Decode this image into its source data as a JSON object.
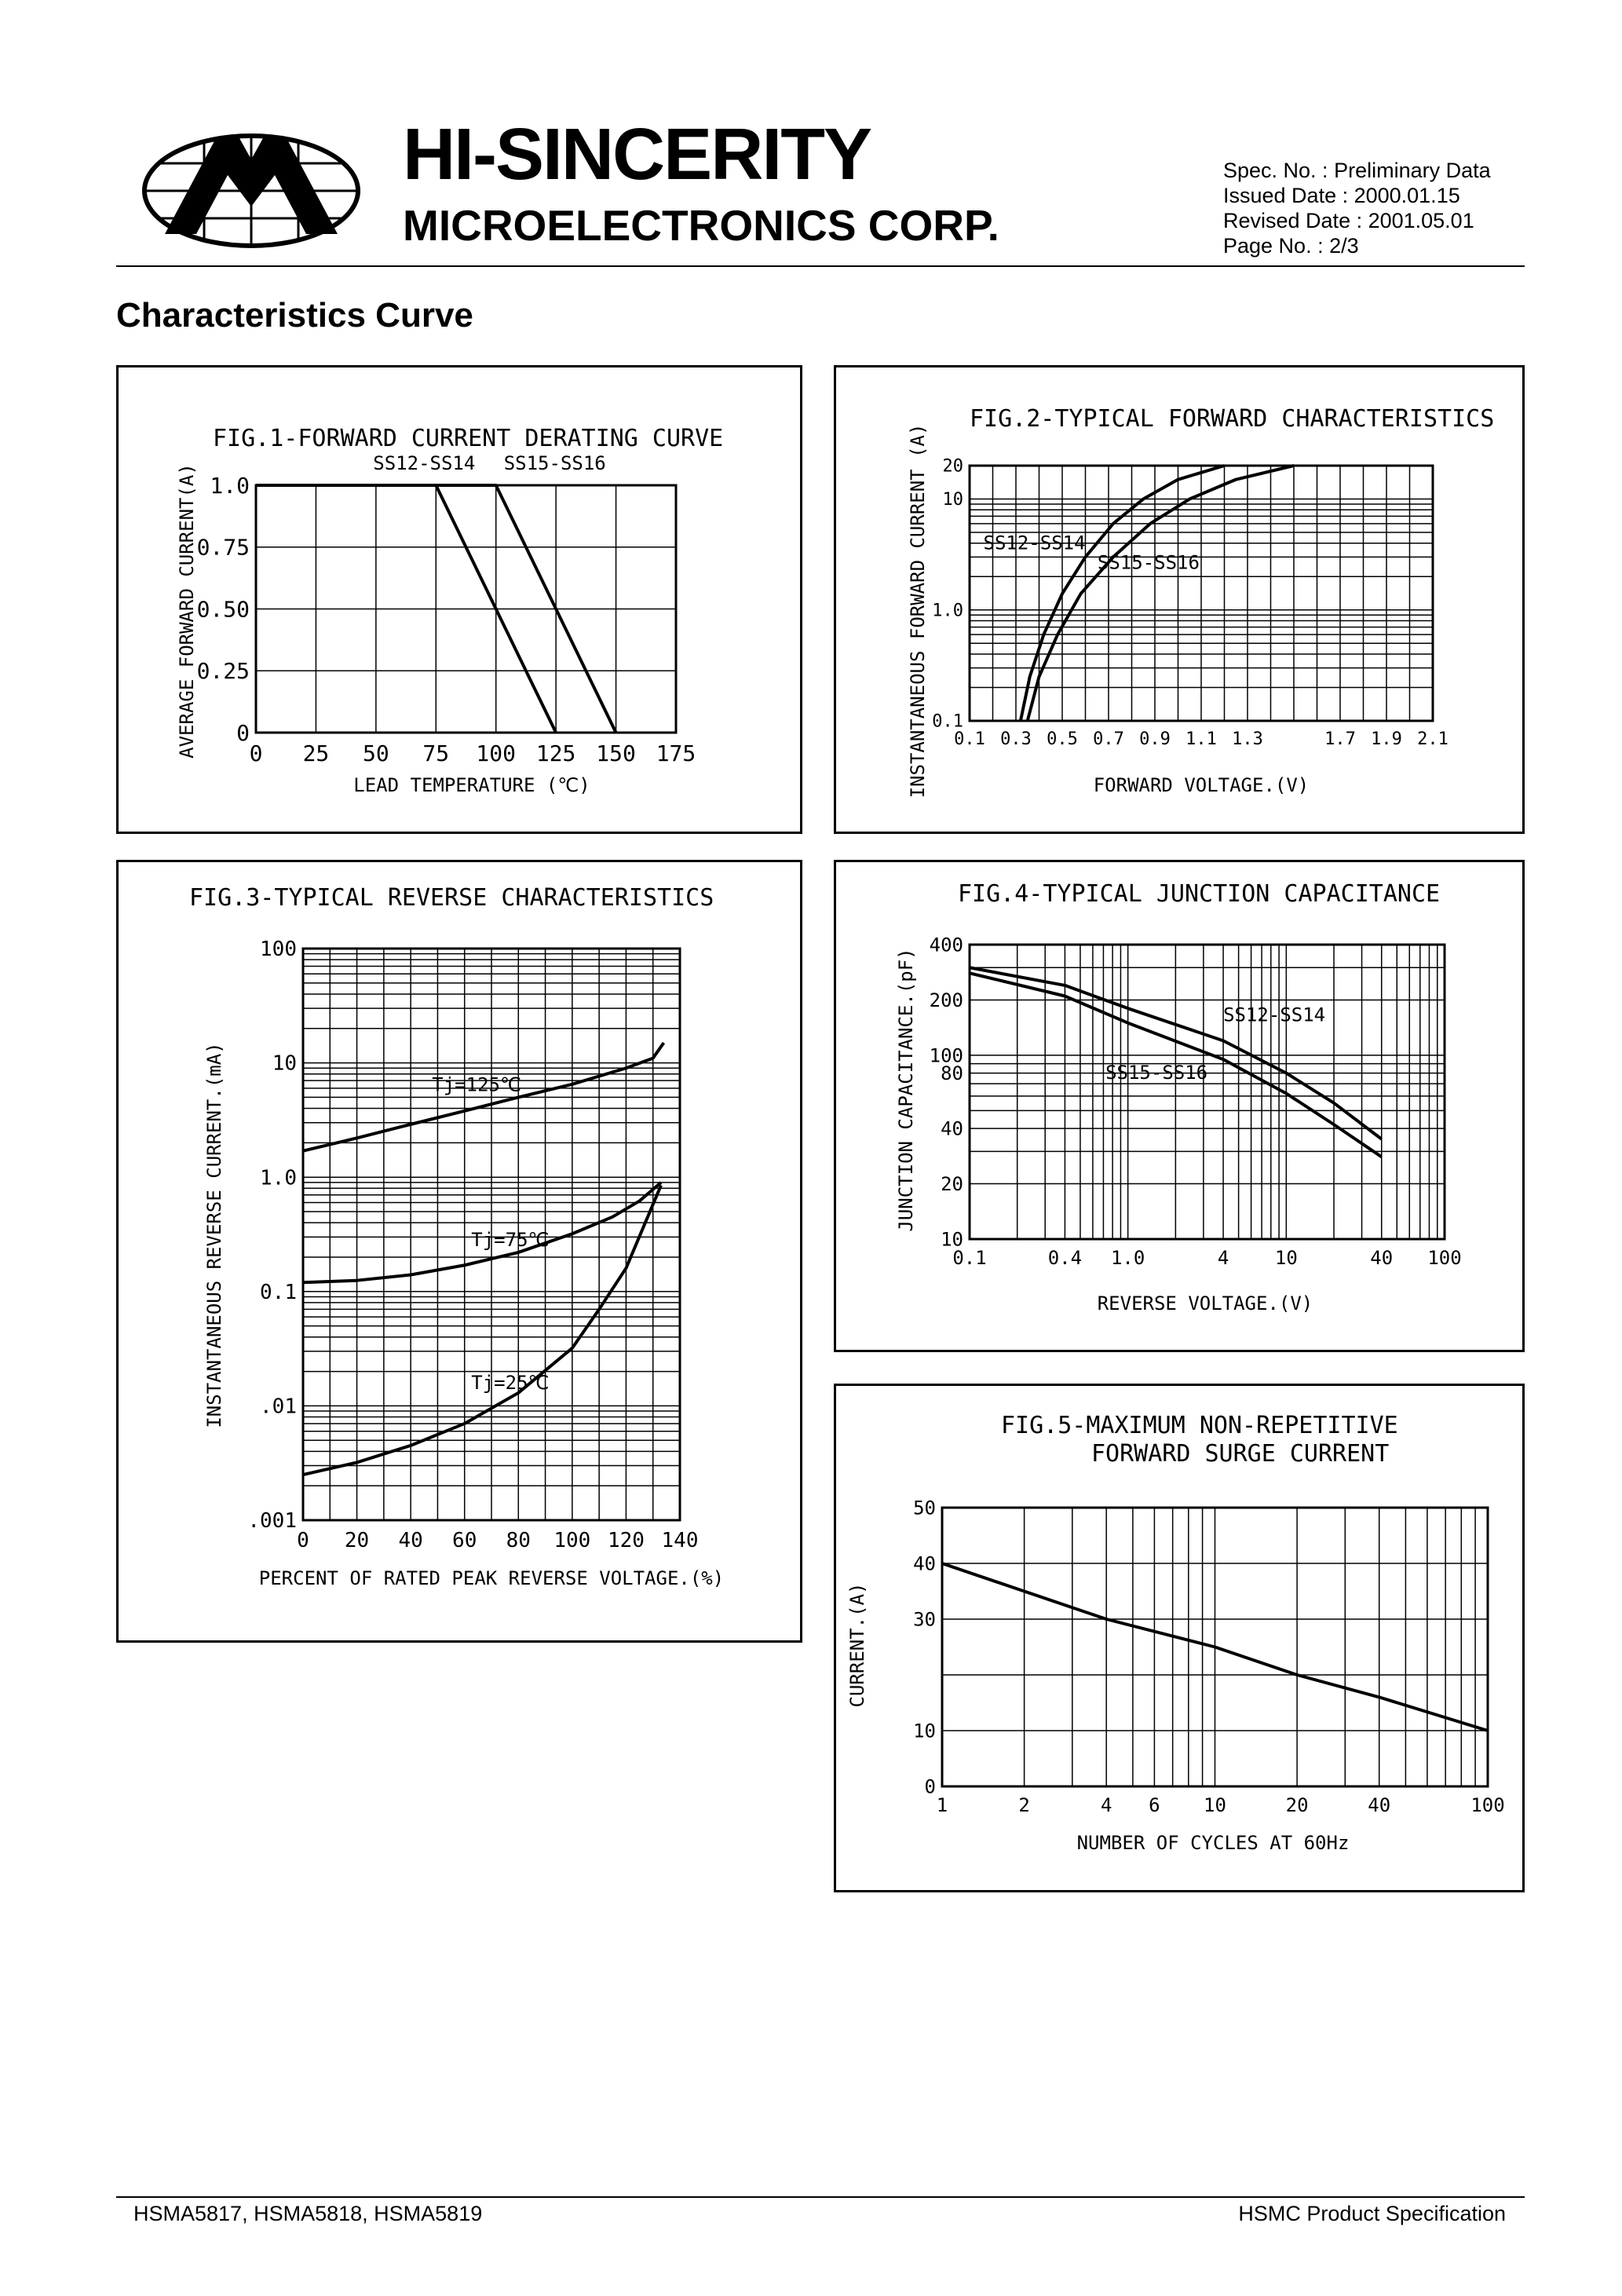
{
  "header": {
    "company_name": "HI-SINCERITY",
    "company_sub": "MICROELECTRONICS CORP.",
    "spec_no": "Spec. No. : Preliminary Data",
    "issued_date": "Issued Date : 2000.01.15",
    "revised_date": "Revised Date : 2001.05.01",
    "page_no": "Page No. : 2/3"
  },
  "section_title": "Characteristics Curve",
  "footer": {
    "left": "HSMA5817, HSMA5818, HSMA5819",
    "right": "HSMC Product Specification"
  },
  "chart_data": [
    {
      "id": "fig1",
      "type": "line",
      "title": "FIG.1-FORWARD CURRENT DERATING CURVE",
      "xlabel": "LEAD TEMPERATURE (℃)",
      "ylabel": "AVERAGE FORWARD CURRENT(A)",
      "xlim": [
        0,
        175
      ],
      "ylim": [
        0,
        1.0
      ],
      "x_ticks": [
        0,
        25,
        50,
        75,
        100,
        125,
        150,
        175
      ],
      "y_ticks": [
        0,
        0.25,
        0.5,
        0.75,
        1.0
      ],
      "y_tick_labels": [
        "0",
        "0.25",
        "0.50",
        "0.75",
        "1.0"
      ],
      "series": [
        {
          "name": "SS12-SS14",
          "x": [
            0,
            75,
            125
          ],
          "y": [
            1.0,
            1.0,
            0
          ]
        },
        {
          "name": "SS15-SS16",
          "x": [
            0,
            100,
            150
          ],
          "y": [
            1.0,
            1.0,
            0
          ]
        }
      ],
      "grid": true
    },
    {
      "id": "fig2",
      "type": "line",
      "title": "FIG.2-TYPICAL FORWARD CHARACTERISTICS",
      "xlabel": "FORWARD VOLTAGE.(V)",
      "ylabel": "INSTANTANEOUS FORWARD CURRENT (A)",
      "xlim": [
        0.1,
        2.1
      ],
      "ylim": [
        0.1,
        20
      ],
      "y_scale": "log",
      "x_tick_labels": [
        "0.1",
        "0.3",
        "0.5",
        "0.7",
        "0.9",
        "1.1",
        "1.3",
        "1.7",
        "1.9",
        "2.1"
      ],
      "x_tick_values": [
        0.1,
        0.3,
        0.5,
        0.7,
        0.9,
        1.1,
        1.3,
        1.7,
        1.9,
        2.1
      ],
      "y_tick_labels": [
        "0.1",
        "1.0",
        "10",
        "20"
      ],
      "y_tick_values": [
        0.1,
        1.0,
        10,
        20
      ],
      "series": [
        {
          "name": "SS12-SS14",
          "x": [
            0.32,
            0.36,
            0.42,
            0.5,
            0.6,
            0.72,
            0.85,
            1.0,
            1.2
          ],
          "y": [
            0.1,
            0.25,
            0.6,
            1.4,
            3,
            6,
            10,
            15,
            20
          ]
        },
        {
          "name": "SS15-SS16",
          "x": [
            0.35,
            0.4,
            0.48,
            0.58,
            0.72,
            0.88,
            1.05,
            1.25,
            1.5
          ],
          "y": [
            0.1,
            0.25,
            0.6,
            1.4,
            3,
            6,
            10,
            15,
            20
          ]
        }
      ],
      "grid": true
    },
    {
      "id": "fig3",
      "type": "line",
      "title": "FIG.3-TYPICAL REVERSE CHARACTERISTICS",
      "xlabel": "PERCENT OF RATED PEAK REVERSE VOLTAGE.(%)",
      "ylabel": "INSTANTANEOUS REVERSE CURRENT.(mA)",
      "xlim": [
        0,
        140
      ],
      "ylim": [
        0.001,
        100
      ],
      "y_scale": "log",
      "x_tick_values": [
        0,
        20,
        40,
        60,
        80,
        100,
        120,
        140
      ],
      "x_tick_labels": [
        "0",
        "20",
        "40",
        "60",
        "80",
        "100",
        "120",
        "140"
      ],
      "y_tick_values": [
        0.001,
        0.01,
        0.1,
        1.0,
        10,
        100
      ],
      "y_tick_labels": [
        ".001",
        ".01",
        "0.1",
        "1.0",
        "10",
        "100"
      ],
      "series": [
        {
          "name": "Tj=125℃",
          "x": [
            0,
            20,
            40,
            60,
            80,
            100,
            120,
            130,
            134
          ],
          "y": [
            1.7,
            2.2,
            2.9,
            3.8,
            5.0,
            6.5,
            9.0,
            11,
            15
          ]
        },
        {
          "name": "Tj=75℃",
          "x": [
            0,
            20,
            40,
            60,
            80,
            100,
            115,
            125,
            133
          ],
          "y": [
            0.12,
            0.125,
            0.14,
            0.17,
            0.22,
            0.32,
            0.45,
            0.62,
            0.9
          ]
        },
        {
          "name": "Tj=25℃",
          "x": [
            0,
            20,
            40,
            60,
            80,
            100,
            110,
            120,
            133
          ],
          "y": [
            0.0025,
            0.0032,
            0.0045,
            0.007,
            0.013,
            0.032,
            0.07,
            0.16,
            0.85
          ]
        }
      ],
      "grid": true
    },
    {
      "id": "fig4",
      "type": "line",
      "title": "FIG.4-TYPICAL JUNCTION CAPACITANCE",
      "xlabel": "REVERSE VOLTAGE.(V)",
      "ylabel": "JUNCTION CAPACITANCE.(pF)",
      "x_scale": "log",
      "y_scale": "log",
      "xlim": [
        0.1,
        100
      ],
      "ylim": [
        10,
        400
      ],
      "x_tick_values": [
        0.1,
        0.4,
        1.0,
        4,
        10,
        40,
        100
      ],
      "x_tick_labels": [
        "0.1",
        "0.4",
        "1.0",
        "4",
        "10",
        "40",
        "100"
      ],
      "y_tick_values": [
        10,
        20,
        40,
        80,
        100,
        200,
        400
      ],
      "y_tick_labels": [
        "10",
        "20",
        "40",
        "80",
        "100",
        "200",
        "400"
      ],
      "series": [
        {
          "name": "SS12-SS14",
          "x": [
            0.1,
            0.4,
            1.0,
            4,
            10,
            20,
            40
          ],
          "y": [
            300,
            240,
            180,
            120,
            80,
            55,
            35
          ]
        },
        {
          "name": "SS15-SS16",
          "x": [
            0.1,
            0.4,
            1.0,
            4,
            10,
            20,
            40
          ],
          "y": [
            280,
            210,
            150,
            95,
            62,
            42,
            28
          ]
        }
      ],
      "grid": true
    },
    {
      "id": "fig5",
      "type": "line",
      "title": "FIG.5-MAXIMUM NON-REPETITIVE",
      "title_line2": "FORWARD SURGE CURRENT",
      "xlabel": "NUMBER OF CYCLES AT 60Hz",
      "ylabel": "CURRENT.(A)",
      "x_scale": "log",
      "xlim": [
        1,
        100
      ],
      "ylim": [
        0,
        50
      ],
      "x_tick_values": [
        1,
        2,
        4,
        6,
        10,
        20,
        40,
        100
      ],
      "x_tick_labels": [
        "1",
        "2",
        "4",
        "6",
        "10",
        "20",
        "40",
        "100"
      ],
      "y_tick_values": [
        0,
        10,
        30,
        40,
        50
      ],
      "y_tick_labels": [
        "0",
        "10",
        "30",
        "40",
        "50"
      ],
      "series": [
        {
          "x": [
            1,
            2,
            4,
            10,
            20,
            40,
            100
          ],
          "y": [
            40,
            35,
            30,
            25,
            20,
            16,
            10
          ]
        }
      ],
      "grid": true
    }
  ]
}
